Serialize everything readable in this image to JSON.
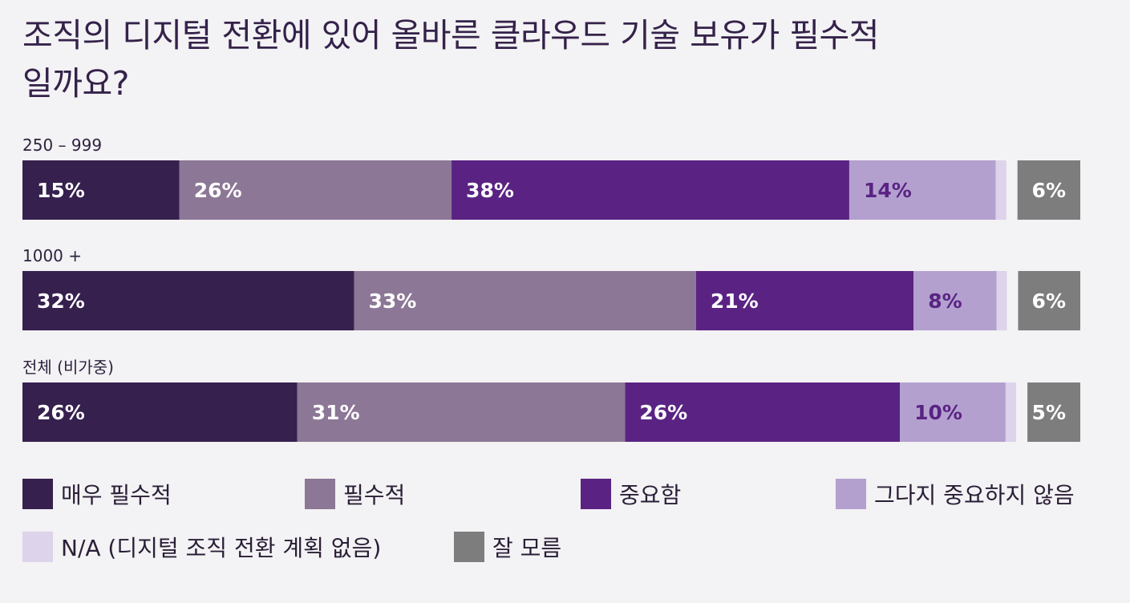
{
  "chart_data": {
    "type": "bar",
    "orientation": "horizontal",
    "stacked": true,
    "normalized": true,
    "title": "조직의 디지털 전환에 있어 올바른 클라우드 기술 보유가 필수적일까요?",
    "categories": [
      "250 – 999",
      "1000 +",
      "전체 (비가중)"
    ],
    "series": [
      {
        "name": "매우 필수적",
        "color": "#36204e",
        "label_color": "#ffffff",
        "values": [
          15,
          32,
          26
        ],
        "labels": [
          "15%",
          "32%",
          "26%"
        ]
      },
      {
        "name": "필수적",
        "color": "#8c7796",
        "label_color": "#ffffff",
        "values": [
          26,
          33,
          31
        ],
        "labels": [
          "26%",
          "33%",
          "31%"
        ]
      },
      {
        "name": "중요함",
        "color": "#5a2383",
        "label_color": "#ffffff",
        "values": [
          38,
          21,
          26
        ],
        "labels": [
          "38%",
          "21%",
          "26%"
        ]
      },
      {
        "name": "그다지 중요하지 않음",
        "color": "#b3a0cf",
        "label_color": "#5a2383",
        "values": [
          14,
          8,
          10
        ],
        "labels": [
          "14%",
          "8%",
          "10%"
        ]
      },
      {
        "name": "N/A (디지털 조직 전환 계획 없음)",
        "color": "#ddd3ea",
        "label_color": "#5a2383",
        "values": [
          1,
          1,
          1
        ],
        "labels": [
          "",
          "",
          ""
        ]
      },
      {
        "name": "잘 모름",
        "color": "#7d7d7d",
        "label_color": "#ffffff",
        "values": [
          6,
          6,
          5
        ],
        "labels": [
          "6%",
          "6%",
          "5%"
        ]
      }
    ],
    "xlim": [
      0,
      100
    ],
    "grid": false,
    "legend_position": "bottom"
  }
}
